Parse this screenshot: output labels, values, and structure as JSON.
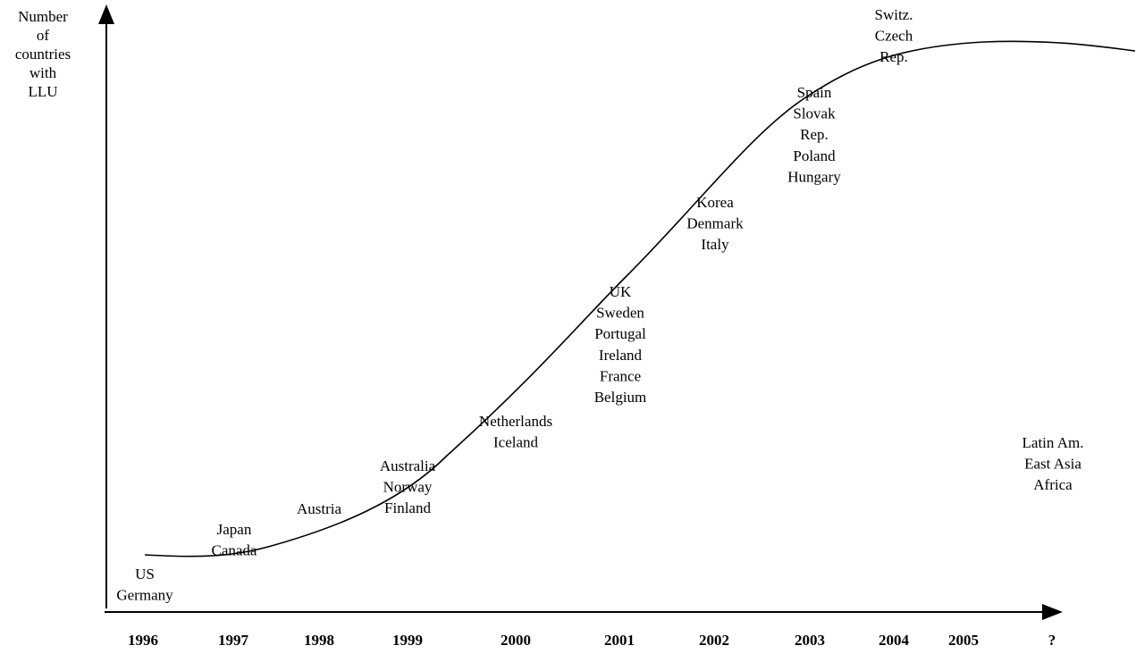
{
  "axis_label": [
    "Number",
    "of",
    "countries",
    "with",
    "LLU"
  ],
  "years": [
    "1996",
    "1997",
    "1998",
    "1999",
    "2000",
    "2001",
    "2002",
    "2003",
    "2004",
    "2005",
    "?"
  ],
  "groups": [
    [
      "US",
      "Germany"
    ],
    [
      "Japan",
      "Canada"
    ],
    [
      "Austria"
    ],
    [
      "Australia",
      "Norway",
      "Finland"
    ],
    [
      "Netherlands",
      "Iceland"
    ],
    [
      "UK",
      "Sweden",
      "Portugal",
      "Ireland",
      "France",
      "Belgium"
    ],
    [
      "Korea",
      "Denmark",
      "Italy"
    ],
    [
      "Spain",
      "Slovak",
      "Rep.",
      "Poland",
      "Hungary"
    ],
    [
      "Switz.",
      "Czech",
      "Rep."
    ],
    [
      "Latin  Am.",
      "East Asia",
      "Africa"
    ]
  ]
}
